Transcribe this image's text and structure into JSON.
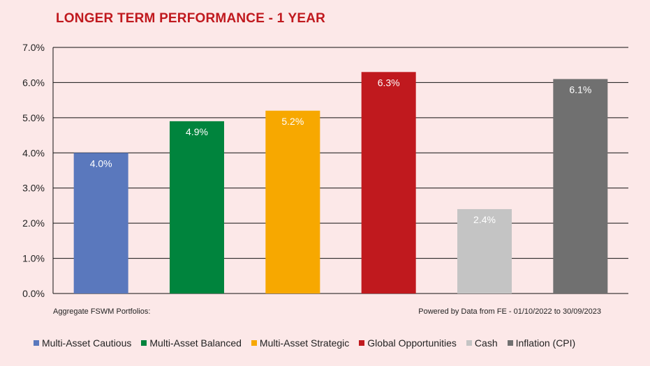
{
  "title": "LONGER TERM PERFORMANCE - 1 YEAR",
  "footnote_left": "Aggregate FSWM Portfolios:",
  "footnote_right": "Powered by Data from FE - 01/10/2022 to 30/09/2023",
  "chart_data": {
    "type": "bar",
    "title": "LONGER TERM PERFORMANCE - 1 YEAR",
    "categories": [
      "Multi-Asset Cautious",
      "Multi-Asset Balanced",
      "Multi-Asset Strategic",
      "Global Opportunities",
      "Cash",
      "Inflation (CPI)"
    ],
    "values": [
      4.0,
      4.9,
      5.2,
      6.3,
      2.4,
      6.1
    ],
    "value_labels": [
      "4.0%",
      "4.9%",
      "5.2%",
      "6.3%",
      "2.4%",
      "6.1%"
    ],
    "colors": [
      "#5a78bd",
      "#00843d",
      "#f7a800",
      "#c0191e",
      "#c4c4c4",
      "#707070"
    ],
    "label_colors": [
      "#ffffff",
      "#ffffff",
      "#ffffff",
      "#ffffff",
      "#ffffff",
      "#ffffff"
    ],
    "ylim": [
      0,
      7
    ],
    "yticks": [
      0,
      1,
      2,
      3,
      4,
      5,
      6,
      7
    ],
    "ytick_labels": [
      "0.0%",
      "1.0%",
      "2.0%",
      "3.0%",
      "4.0%",
      "5.0%",
      "6.0%",
      "7.0%"
    ],
    "grid": true,
    "legend_position": "bottom",
    "xlabel": "",
    "ylabel": ""
  }
}
